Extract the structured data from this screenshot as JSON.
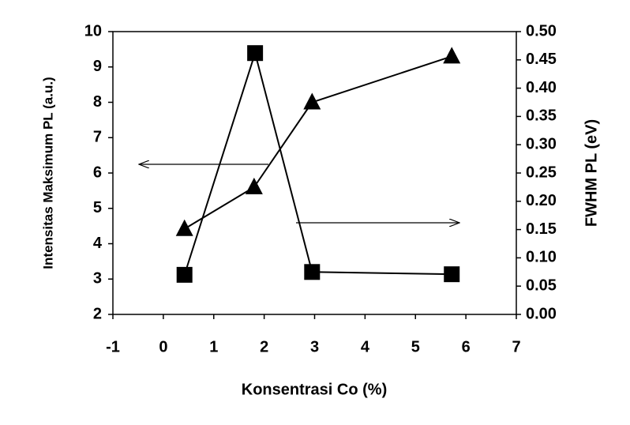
{
  "chart_data": {
    "type": "line",
    "x_label": "Konsentrasi Co (%)",
    "y_label": "Intensitas Maksimum PL (a.u.)",
    "y2_label": "FWHM PL (eV)",
    "xlim": [
      -1,
      7
    ],
    "xticks": [
      -1,
      0,
      1,
      2,
      3,
      4,
      5,
      6,
      7
    ],
    "ylim": [
      2,
      10
    ],
    "yticks": [
      2,
      3,
      4,
      5,
      6,
      7,
      8,
      9,
      10
    ],
    "y2lim": [
      0,
      0.5
    ],
    "y2ticks": [
      {
        "value": 0,
        "label": "0.00"
      },
      {
        "value": 0.05,
        "label": "0.05"
      },
      {
        "value": 0.1,
        "label": "0.10"
      },
      {
        "value": 0.15,
        "label": "0.15"
      },
      {
        "value": 0.2,
        "label": "0.20"
      },
      {
        "value": 0.25,
        "label": "0.25"
      },
      {
        "value": 0.3,
        "label": "0.30"
      },
      {
        "value": 0.35,
        "label": "0.35"
      },
      {
        "value": 0.4,
        "label": "0.40"
      },
      {
        "value": 0.45,
        "label": "0.45"
      },
      {
        "value": 0.5,
        "label": "0.50"
      }
    ],
    "grid": false,
    "series": [
      {
        "color": "#000000",
        "marker": "triangle",
        "x": [
          0.42,
          1.8,
          2.95,
          5.72
        ],
        "values": [
          4.42,
          5.6,
          8.0,
          9.3
        ]
      },
      {
        "color": "#000000",
        "marker": "square",
        "axis": "y2",
        "x": [
          0.42,
          1.82,
          2.95,
          5.72
        ],
        "values": [
          0.07,
          0.462,
          0.075,
          0.071
        ]
      }
    ]
  }
}
